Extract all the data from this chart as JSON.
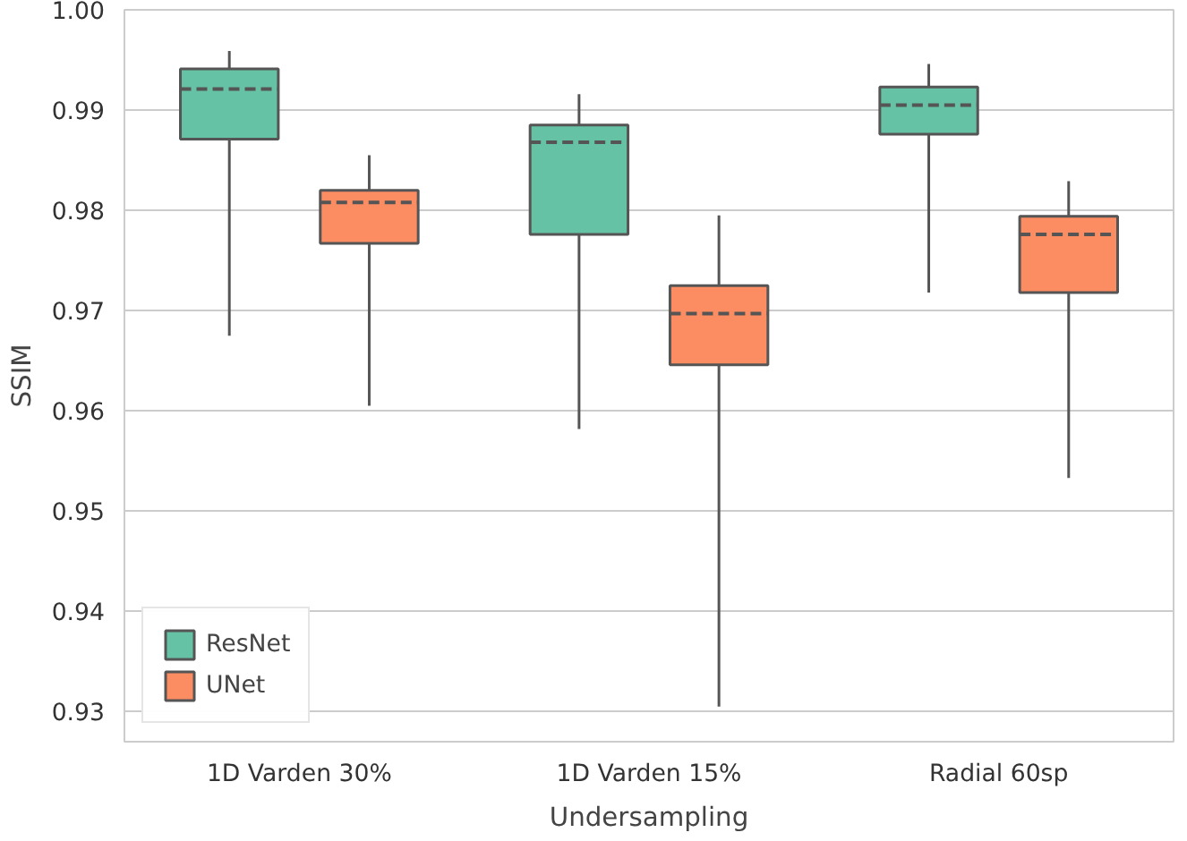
{
  "chart_data": {
    "type": "box",
    "xlabel": "Undersampling",
    "ylabel": "SSIM",
    "categories": [
      "1D Varden 30%",
      "1D Varden 15%",
      "Radial 60sp"
    ],
    "ylim": [
      0.927,
      1.0
    ],
    "yticks": [
      0.93,
      0.94,
      0.95,
      0.96,
      0.97,
      0.98,
      0.99,
      {
        "value": 1.0,
        "label": "1.00"
      }
    ],
    "grid": "y",
    "legend": "bottom left",
    "series": [
      {
        "name": "ResNet",
        "color": "#66c2a5",
        "boxes": [
          {
            "low": 0.9675,
            "q1": 0.9871,
            "median": 0.9921,
            "q3": 0.9941,
            "high": 0.9959
          },
          {
            "low": 0.9582,
            "q1": 0.9776,
            "median": 0.9868,
            "q3": 0.9885,
            "high": 0.9916
          },
          {
            "low": 0.9718,
            "q1": 0.9876,
            "median": 0.9905,
            "q3": 0.9923,
            "high": 0.9946
          }
        ]
      },
      {
        "name": "UNet",
        "color": "#fc8d62",
        "boxes": [
          {
            "low": 0.9605,
            "q1": 0.9767,
            "median": 0.9808,
            "q3": 0.982,
            "high": 0.9855
          },
          {
            "low": 0.9305,
            "q1": 0.9646,
            "median": 0.9697,
            "q3": 0.9725,
            "high": 0.9795
          },
          {
            "low": 0.9533,
            "q1": 0.9718,
            "median": 0.9776,
            "q3": 0.9794,
            "high": 0.9829
          }
        ]
      }
    ]
  }
}
